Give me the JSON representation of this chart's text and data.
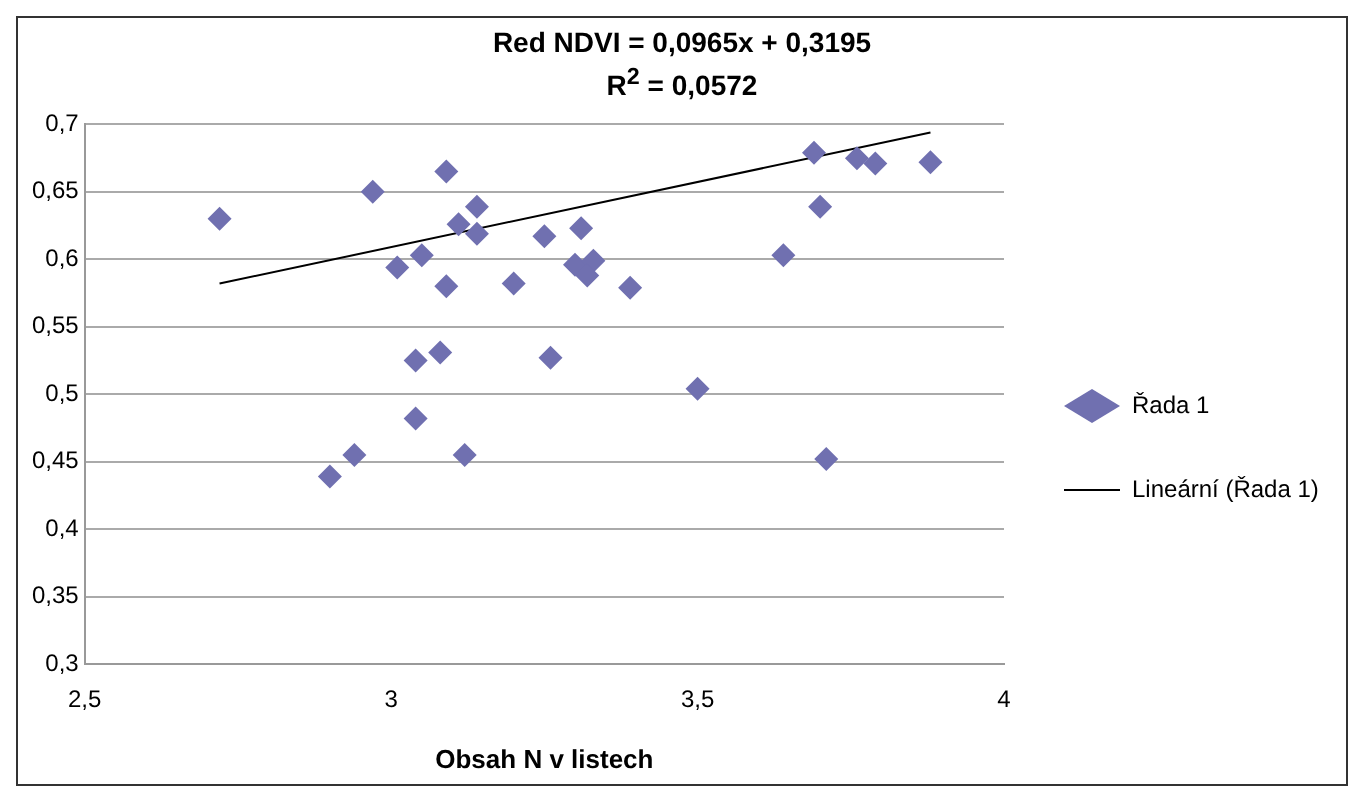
{
  "chart_data": {
    "type": "scatter",
    "title": "Red NDVI = 0,0965x + 0,3195",
    "subtitle": "R$^{2}$ = 0,0572",
    "xlabel": "Obsah N v listech",
    "xlim": [
      2.5,
      4
    ],
    "xticks": [
      {
        "value": 2.5,
        "label": "2,5"
      },
      3,
      {
        "value": 3.5,
        "label": "3,5"
      },
      4
    ],
    "ylim": [
      0.3,
      0.7
    ],
    "yticks": [
      {
        "value": 0.3,
        "label": "0,3"
      },
      {
        "value": 0.35,
        "label": "0,35"
      },
      {
        "value": 0.4,
        "label": "0,4"
      },
      {
        "value": 0.45,
        "label": "0,45"
      },
      {
        "value": 0.5,
        "label": "0,5"
      },
      {
        "value": 0.55,
        "label": "0,55"
      },
      {
        "value": 0.6,
        "label": "0,6"
      },
      {
        "value": 0.65,
        "label": "0,65"
      },
      {
        "value": 0.7,
        "label": "0,7"
      }
    ],
    "grid": "y",
    "legend": "right",
    "series": [
      {
        "name": "Řada 1",
        "marker": "diamond",
        "color": "#7070b0",
        "x": [
          2.72,
          2.97,
          3.09,
          3.14,
          3.11,
          3.14,
          3.01,
          3.05,
          3.09,
          3.2,
          3.25,
          3.31,
          3.3,
          3.33,
          3.32,
          3.39,
          3.64,
          3.7,
          3.69,
          3.76,
          3.79,
          3.88,
          3.08,
          3.04,
          3.26,
          3.5,
          3.04,
          2.94,
          2.9,
          3.12,
          3.71
        ],
        "values": [
          0.63,
          0.65,
          0.665,
          0.639,
          0.626,
          0.619,
          0.594,
          0.603,
          0.58,
          0.582,
          0.617,
          0.623,
          0.596,
          0.599,
          0.588,
          0.579,
          0.603,
          0.639,
          0.679,
          0.675,
          0.671,
          0.672,
          0.531,
          0.525,
          0.527,
          0.504,
          0.482,
          0.455,
          0.439,
          0.455,
          0.452
        ]
      },
      {
        "name": "Lineární (Řada 1)",
        "type": "line",
        "marker": "none",
        "color": "#000000",
        "x": [
          2.72,
          3.88
        ],
        "values": [
          0.582,
          0.694
        ]
      }
    ]
  }
}
